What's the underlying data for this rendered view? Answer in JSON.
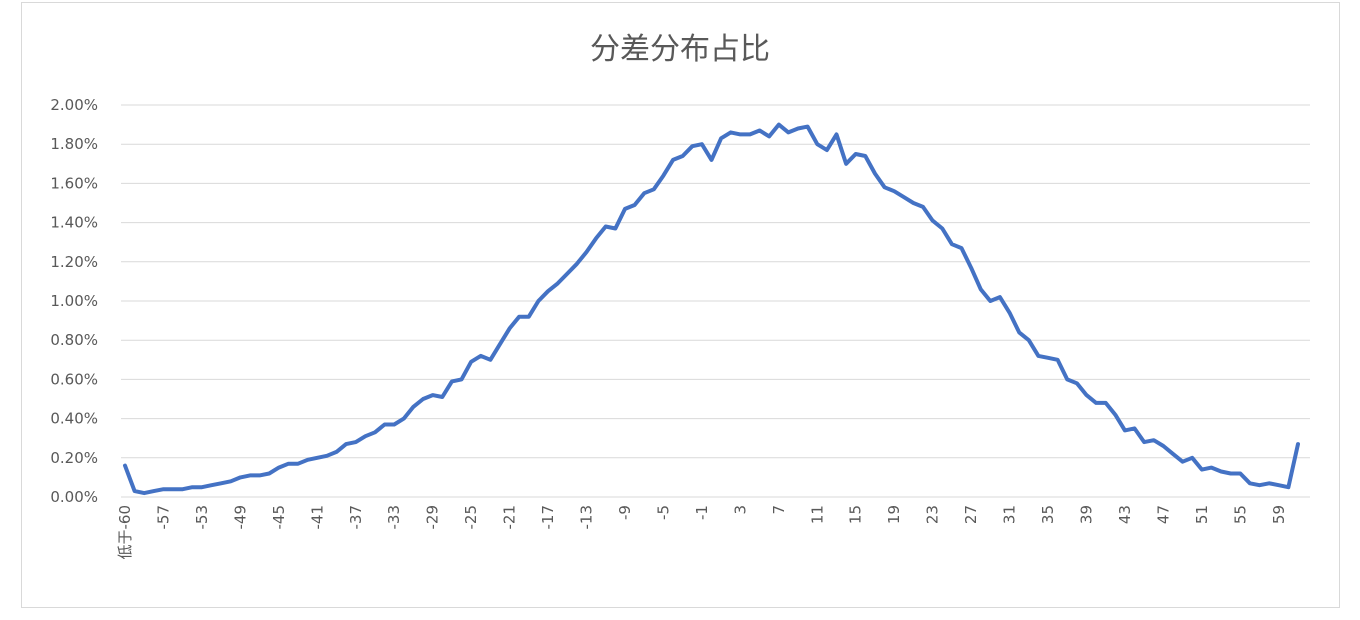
{
  "chart_data": {
    "type": "line",
    "title": "分差分布占比",
    "y_tick_labels": [
      "0.00%",
      "0.20%",
      "0.40%",
      "0.60%",
      "0.80%",
      "1.00%",
      "1.20%",
      "1.40%",
      "1.60%",
      "1.80%",
      "2.00%"
    ],
    "ylim": [
      0,
      0.02
    ],
    "grid": true,
    "legend": "none",
    "line_color": "#4472C4",
    "x_tick_labels": [
      "低于-60",
      "-57",
      "-53",
      "-49",
      "-45",
      "-41",
      "-37",
      "-33",
      "-29",
      "-25",
      "-21",
      "-17",
      "-13",
      "-9",
      "-5",
      "-1",
      "3",
      "7",
      "11",
      "15",
      "19",
      "23",
      "27",
      "31",
      "35",
      "39",
      "43",
      "47",
      "51",
      "55",
      "59"
    ],
    "x": [
      "低于-60",
      -60,
      -59,
      -58,
      -57,
      -56,
      -55,
      -54,
      -53,
      -52,
      -51,
      -50,
      -49,
      -48,
      -47,
      -46,
      -45,
      -44,
      -43,
      -42,
      -41,
      -40,
      -39,
      -38,
      -37,
      -36,
      -35,
      -34,
      -33,
      -32,
      -31,
      -30,
      -29,
      -28,
      -27,
      -26,
      -25,
      -24,
      -23,
      -22,
      -21,
      -20,
      -19,
      -18,
      -17,
      -16,
      -15,
      -14,
      -13,
      -12,
      -11,
      -10,
      -9,
      -8,
      -7,
      -6,
      -5,
      -4,
      -3,
      -2,
      -1,
      0,
      1,
      2,
      3,
      4,
      5,
      6,
      7,
      8,
      9,
      10,
      11,
      12,
      13,
      14,
      15,
      16,
      17,
      18,
      19,
      20,
      21,
      22,
      23,
      24,
      25,
      26,
      27,
      28,
      29,
      30,
      31,
      32,
      33,
      34,
      35,
      36,
      37,
      38,
      39,
      40,
      41,
      42,
      43,
      44,
      45,
      46,
      47,
      48,
      49,
      50,
      51,
      52,
      53,
      54,
      55,
      56,
      57,
      58,
      59,
      60,
      61
    ],
    "values": [
      0.0016,
      0.0003,
      0.0002,
      0.0003,
      0.0004,
      0.0004,
      0.0004,
      0.0005,
      0.0005,
      0.0006,
      0.0007,
      0.0008,
      0.001,
      0.0011,
      0.0011,
      0.0012,
      0.0015,
      0.0017,
      0.0017,
      0.0019,
      0.002,
      0.0021,
      0.0023,
      0.0027,
      0.0028,
      0.0031,
      0.0033,
      0.0037,
      0.0037,
      0.004,
      0.0046,
      0.005,
      0.0052,
      0.0051,
      0.0059,
      0.006,
      0.0069,
      0.0072,
      0.007,
      0.0078,
      0.0086,
      0.0092,
      0.0092,
      0.01,
      0.0105,
      0.0109,
      0.0114,
      0.0119,
      0.0125,
      0.0132,
      0.0138,
      0.0137,
      0.0147,
      0.0149,
      0.0155,
      0.0157,
      0.0164,
      0.0172,
      0.0174,
      0.0179,
      0.018,
      0.0172,
      0.0183,
      0.0186,
      0.0185,
      0.0185,
      0.0187,
      0.0184,
      0.019,
      0.0186,
      0.0188,
      0.0189,
      0.018,
      0.0177,
      0.0185,
      0.017,
      0.0175,
      0.0174,
      0.0165,
      0.0158,
      0.0156,
      0.0153,
      0.015,
      0.0148,
      0.0141,
      0.0137,
      0.0129,
      0.0127,
      0.0117,
      0.0106,
      0.01,
      0.0102,
      0.0094,
      0.0084,
      0.008,
      0.0072,
      0.0071,
      0.007,
      0.006,
      0.0058,
      0.0052,
      0.0048,
      0.0048,
      0.0042,
      0.0034,
      0.0035,
      0.0028,
      0.0029,
      0.0026,
      0.0022,
      0.0018,
      0.002,
      0.0014,
      0.0015,
      0.0013,
      0.0012,
      0.0012,
      0.0007,
      0.0006,
      0.0007,
      0.0006,
      0.0005,
      0.0027
    ]
  }
}
